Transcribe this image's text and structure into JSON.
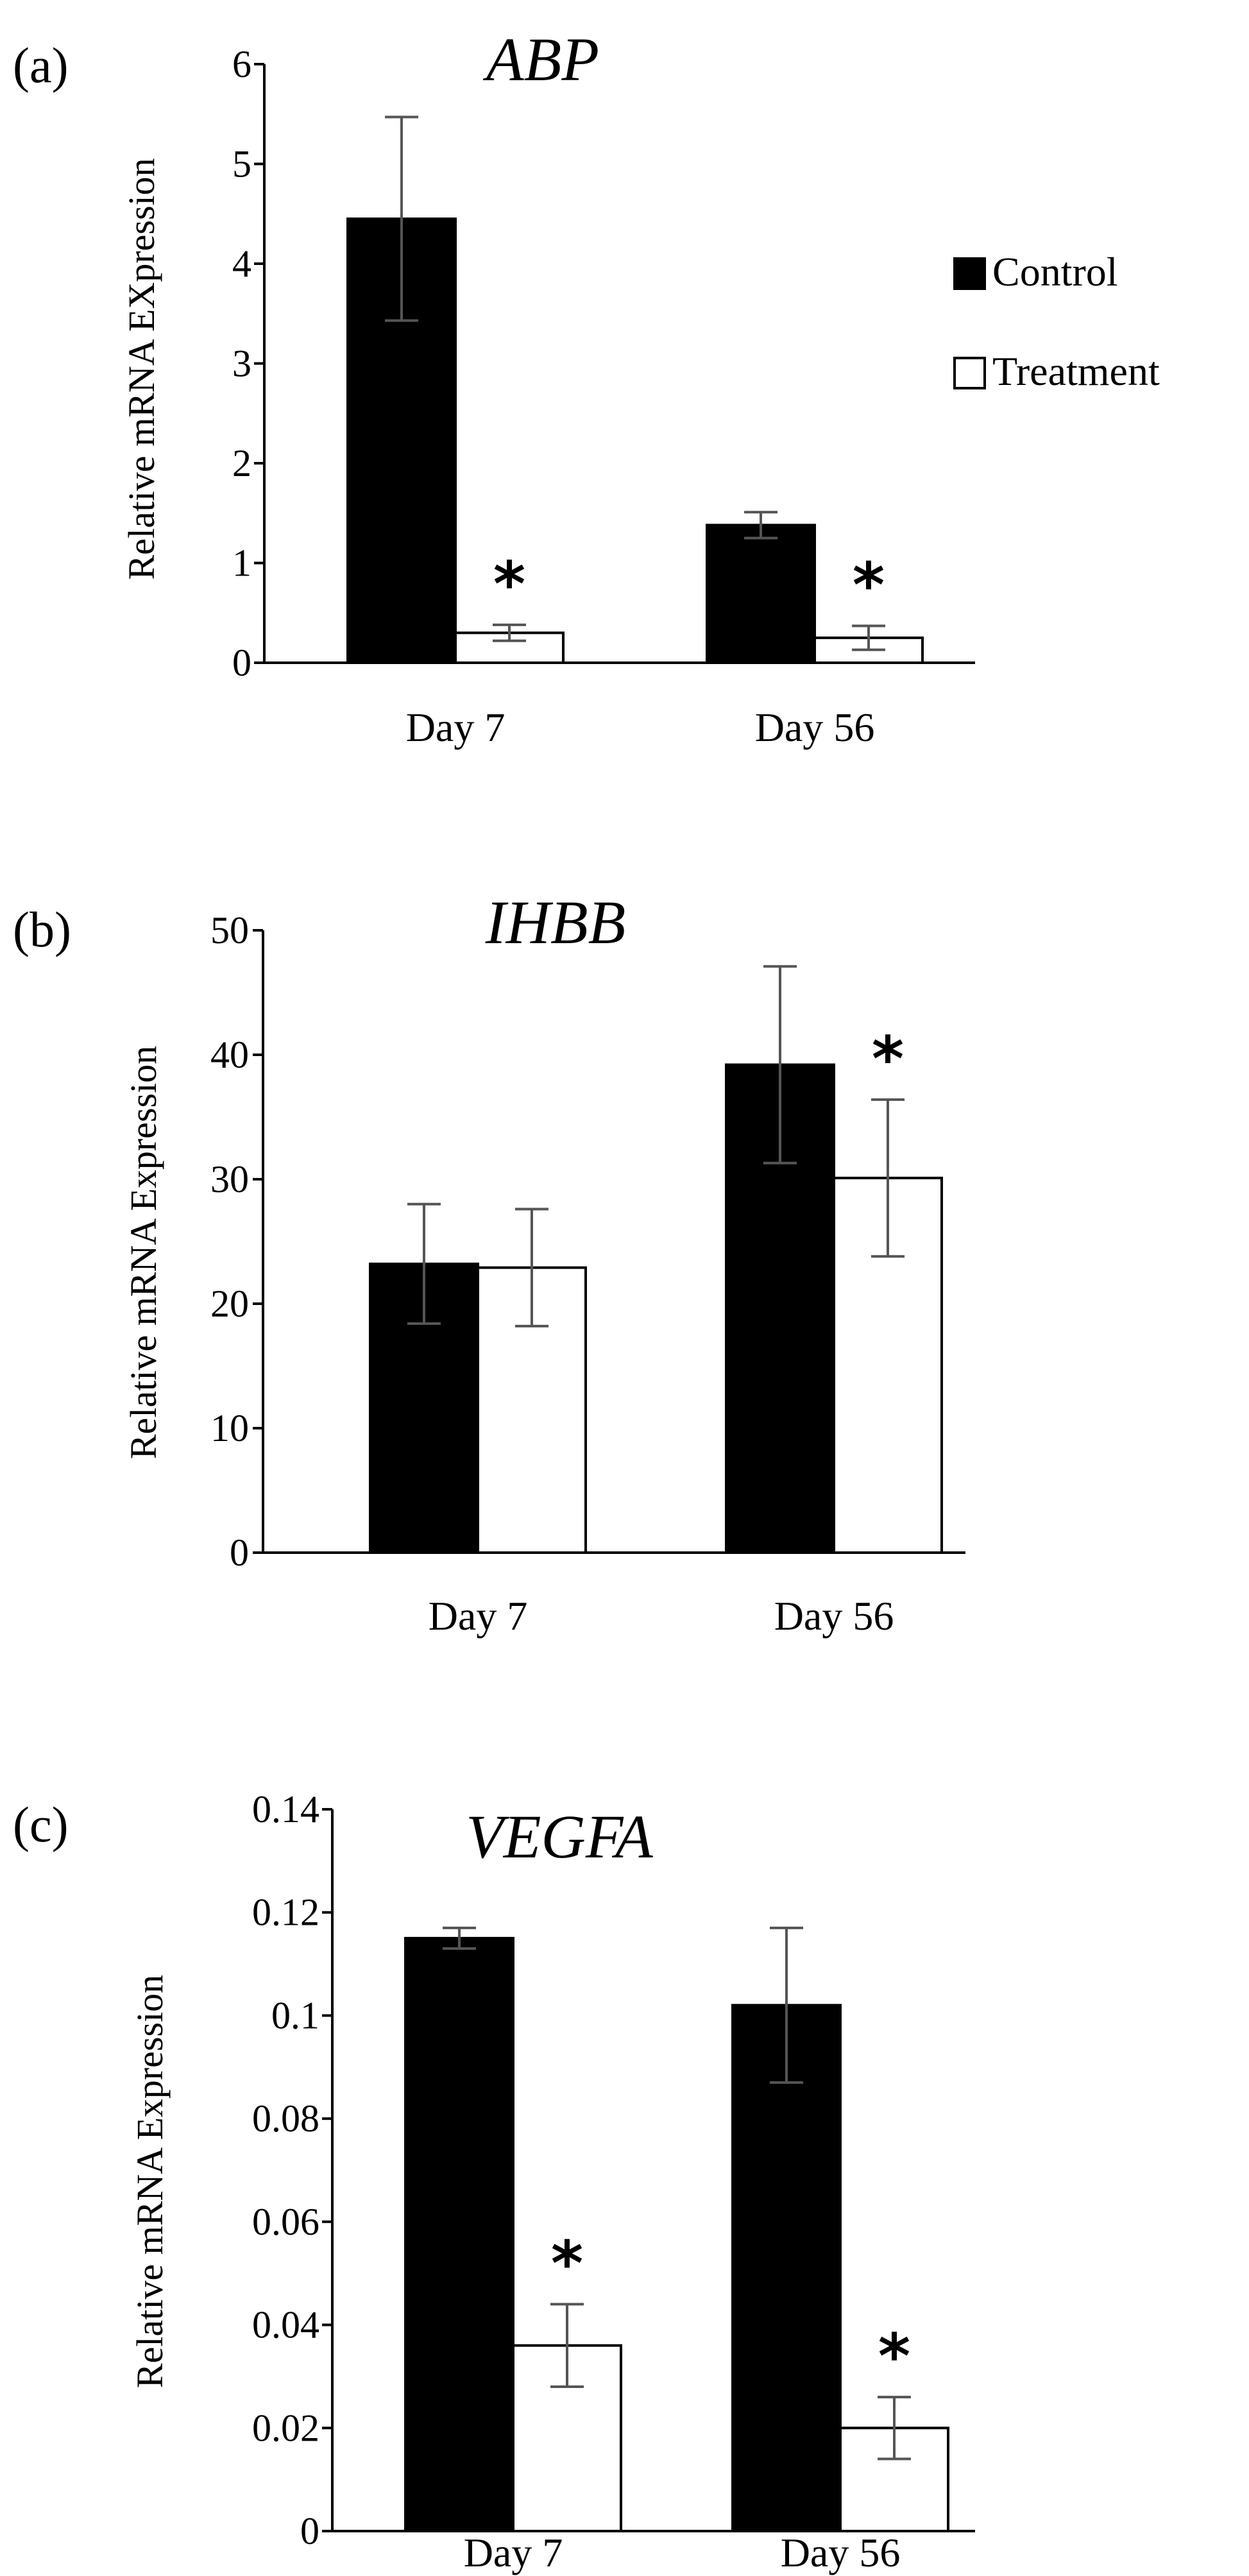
{
  "colors": {
    "control": "#000000",
    "treatment": "#ffffff",
    "outline": "#000000",
    "axis": "#000000",
    "error_bar": "#555555"
  },
  "legend": {
    "entries": [
      "Control",
      "Treatment"
    ]
  },
  "chart_data": [
    {
      "type": "bar",
      "panel": "(a)",
      "title": "ABP",
      "xlabel": "",
      "ylabel": "Relative mRNA EXpression",
      "categories": [
        "Day 7",
        "Day 56"
      ],
      "ylim": [
        0,
        6
      ],
      "yticks": [
        0,
        1,
        2,
        3,
        4,
        5,
        6
      ],
      "ytick_labels": [
        "0",
        "1",
        "2",
        "3",
        "4",
        "5",
        "6"
      ],
      "series": [
        {
          "name": "Control",
          "values": [
            4.45,
            1.38
          ],
          "errors": [
            1.02,
            0.13
          ],
          "significant": [
            false,
            false
          ]
        },
        {
          "name": "Treatment",
          "values": [
            0.3,
            0.25
          ],
          "errors": [
            0.08,
            0.12
          ],
          "significant": [
            true,
            true
          ]
        }
      ],
      "annotation": "*",
      "legend": true
    },
    {
      "type": "bar",
      "panel": "(b)",
      "title": "IHBB",
      "xlabel": "",
      "ylabel": "Relative mRNA Expression",
      "categories": [
        "Day 7",
        "Day 56"
      ],
      "ylim": [
        0,
        50
      ],
      "yticks": [
        0,
        10,
        20,
        30,
        40,
        50
      ],
      "ytick_labels": [
        "0",
        "10",
        "20",
        "30",
        "40",
        "50"
      ],
      "series": [
        {
          "name": "Control",
          "values": [
            23.2,
            39.2
          ],
          "errors": [
            4.8,
            7.9
          ],
          "significant": [
            false,
            false
          ]
        },
        {
          "name": "Treatment",
          "values": [
            22.9,
            30.1
          ],
          "errors": [
            4.7,
            6.3
          ],
          "significant": [
            false,
            true
          ]
        }
      ],
      "annotation": "*",
      "legend": false
    },
    {
      "type": "bar",
      "panel": "(c)",
      "title": "VEGFA",
      "xlabel": "",
      "ylabel": "Relative mRNA Expression",
      "categories": [
        "Day 7",
        "Day 56"
      ],
      "ylim": [
        0,
        0.14
      ],
      "yticks": [
        0,
        0.02,
        0.04,
        0.06,
        0.08,
        0.1,
        0.12,
        0.14
      ],
      "ytick_labels": [
        "0",
        "0.02",
        "0.04",
        "0.06",
        "0.08",
        "0.1",
        "0.12",
        "0.14"
      ],
      "series": [
        {
          "name": "Control",
          "values": [
            0.115,
            0.102
          ],
          "errors": [
            0.002,
            0.015
          ],
          "significant": [
            false,
            false
          ]
        },
        {
          "name": "Treatment",
          "values": [
            0.036,
            0.02
          ],
          "errors": [
            0.008,
            0.006
          ],
          "significant": [
            true,
            true
          ]
        }
      ],
      "annotation": "*",
      "legend": false
    }
  ]
}
